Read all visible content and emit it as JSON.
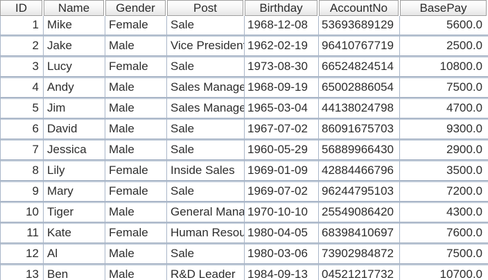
{
  "table": {
    "columns": [
      "ID",
      "Name",
      "Gender",
      "Post",
      "Birthday",
      "AccountNo",
      "BasePay"
    ],
    "rows": [
      [
        "1",
        "Mike",
        "Female",
        "Sale",
        "1968-12-08",
        "53693689129",
        "5600.0"
      ],
      [
        "2",
        "Jake",
        "Male",
        "Vice President",
        "1962-02-19",
        "96410767719",
        "2500.0"
      ],
      [
        "3",
        "Lucy",
        "Female",
        "Sale",
        "1973-08-30",
        "66524824514",
        "10800.0"
      ],
      [
        "4",
        "Andy",
        "Male",
        "Sales Manager",
        "1968-09-19",
        "65002886054",
        "7500.0"
      ],
      [
        "5",
        "Jim",
        "Male",
        "Sales Manager",
        "1965-03-04",
        "44138024798",
        "4700.0"
      ],
      [
        "6",
        "David",
        "Male",
        "Sale",
        "1967-07-02",
        "86091675703",
        "9300.0"
      ],
      [
        "7",
        "Jessica",
        "Male",
        "Sale",
        "1960-05-29",
        "56889966430",
        "2900.0"
      ],
      [
        "8",
        "Lily",
        "Female",
        "Inside Sales",
        "1969-01-09",
        "42884466796",
        "3500.0"
      ],
      [
        "9",
        "Mary",
        "Female",
        "Sale",
        "1969-07-02",
        "96244795103",
        "7200.0"
      ],
      [
        "10",
        "Tiger",
        "Male",
        "General Manager",
        "1970-10-10",
        "25549086420",
        "4300.0"
      ],
      [
        "11",
        "Kate",
        "Female",
        "Human Resource",
        "1980-04-05",
        "68398410697",
        "7600.0"
      ],
      [
        "12",
        "Al",
        "Male",
        "Sale",
        "1980-03-06",
        "73902984872",
        "7500.0"
      ],
      [
        "13",
        "Ben",
        "Male",
        "R&D Leader",
        "1984-09-13",
        "04521217732",
        "10700.0"
      ]
    ]
  },
  "colors": {
    "grid_line": "#a9b6c8",
    "row_band_dark": "#93a2b8",
    "row_band_light": "#c3cdda",
    "header_border": "#9f9f9f",
    "cell_background": "#ffffff",
    "text": "#2d2d2d"
  }
}
